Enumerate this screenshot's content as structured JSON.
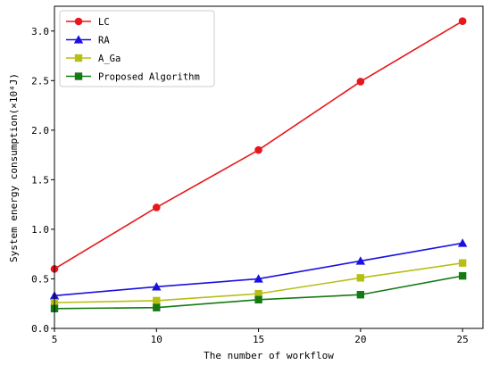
{
  "chart_data": {
    "type": "line",
    "title": "",
    "xlabel": "The number of workflow",
    "ylabel": "System energy consumption(×10⁴J)",
    "x": [
      5,
      10,
      15,
      20,
      25
    ],
    "xlim": [
      5,
      26
    ],
    "ylim": [
      0,
      3.25
    ],
    "xticks": [
      5,
      10,
      15,
      20,
      25
    ],
    "yticks": [
      "0.0",
      "0.5",
      "1.0",
      "1.5",
      "2.0",
      "2.5",
      "3.0"
    ],
    "grid": false,
    "legend_position": "top-left",
    "series": [
      {
        "name": "LC",
        "values": [
          0.6,
          1.22,
          1.8,
          2.49,
          3.1
        ],
        "color": "#e8171b",
        "marker": "circle"
      },
      {
        "name": "RA",
        "values": [
          0.33,
          0.42,
          0.5,
          0.68,
          0.86
        ],
        "color": "#1a10e0",
        "marker": "triangle"
      },
      {
        "name": "A_Ga",
        "values": [
          0.26,
          0.28,
          0.35,
          0.51,
          0.66
        ],
        "color": "#b6bf13",
        "marker": "square"
      },
      {
        "name": "Proposed Algorithm",
        "values": [
          0.2,
          0.21,
          0.29,
          0.34,
          0.53
        ],
        "color": "#157a13",
        "marker": "square"
      }
    ]
  }
}
